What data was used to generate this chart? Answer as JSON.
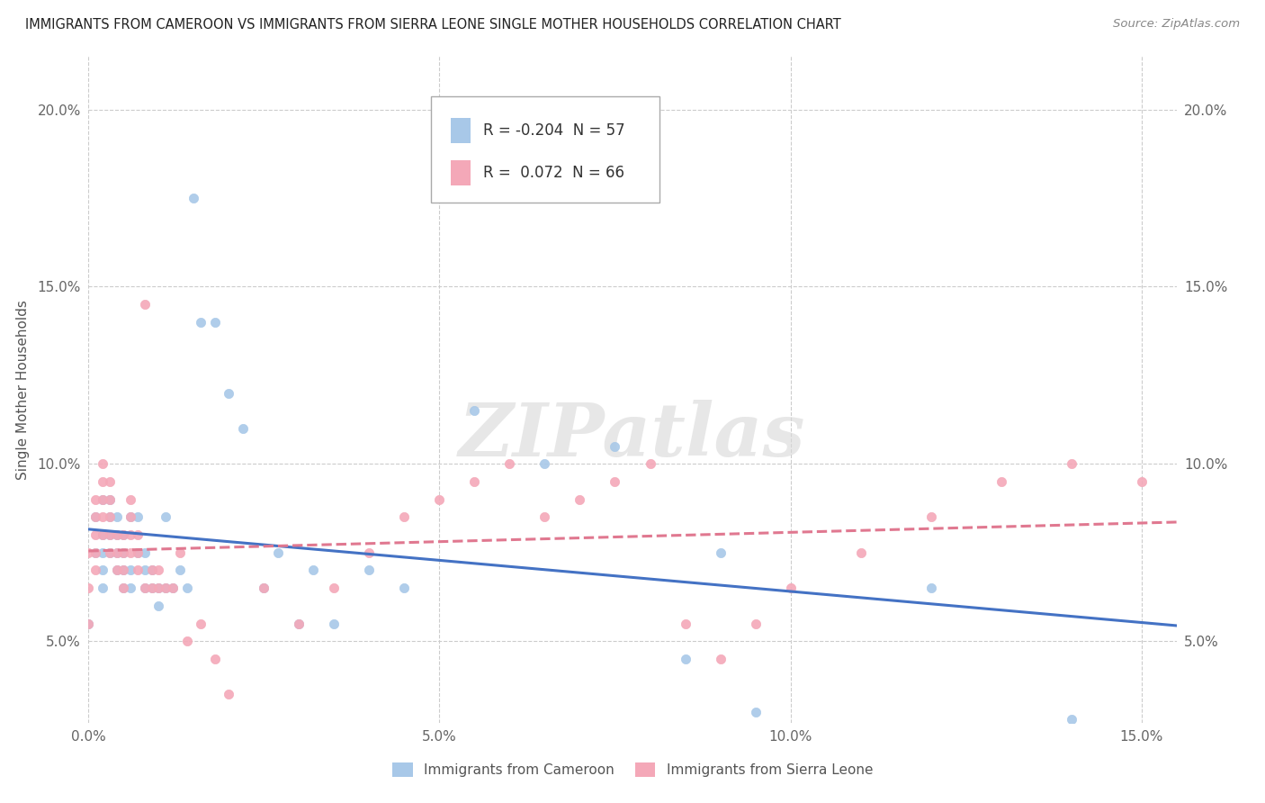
{
  "title": "IMMIGRANTS FROM CAMEROON VS IMMIGRANTS FROM SIERRA LEONE SINGLE MOTHER HOUSEHOLDS CORRELATION CHART",
  "source": "Source: ZipAtlas.com",
  "xlabel_cameroon": "Immigrants from Cameroon",
  "xlabel_sierraleone": "Immigrants from Sierra Leone",
  "ylabel": "Single Mother Households",
  "watermark": "ZIPatlas",
  "legend_R_cameroon": "-0.204",
  "legend_N_cameroon": "57",
  "legend_R_sierraleone": "0.072",
  "legend_N_sierraleone": "66",
  "color_cameroon": "#a8c8e8",
  "color_sierraleone": "#f4a8b8",
  "color_line_cameroon": "#4472c4",
  "color_line_sierraleone": "#e07890",
  "xlim": [
    0.0,
    0.155
  ],
  "ylim": [
    0.027,
    0.215
  ],
  "xticks": [
    0.0,
    0.05,
    0.1,
    0.15
  ],
  "yticks": [
    0.05,
    0.1,
    0.15,
    0.2
  ],
  "cameroon_x": [
    0.0,
    0.001,
    0.001,
    0.002,
    0.002,
    0.002,
    0.002,
    0.002,
    0.003,
    0.003,
    0.003,
    0.003,
    0.004,
    0.004,
    0.004,
    0.004,
    0.005,
    0.005,
    0.005,
    0.005,
    0.006,
    0.006,
    0.006,
    0.007,
    0.007,
    0.008,
    0.008,
    0.008,
    0.009,
    0.009,
    0.01,
    0.01,
    0.011,
    0.011,
    0.012,
    0.013,
    0.014,
    0.015,
    0.016,
    0.018,
    0.02,
    0.022,
    0.025,
    0.027,
    0.03,
    0.032,
    0.035,
    0.04,
    0.045,
    0.055,
    0.065,
    0.075,
    0.085,
    0.09,
    0.095,
    0.12,
    0.14
  ],
  "cameroon_y": [
    0.055,
    0.085,
    0.075,
    0.065,
    0.07,
    0.075,
    0.08,
    0.09,
    0.075,
    0.08,
    0.085,
    0.09,
    0.07,
    0.075,
    0.08,
    0.085,
    0.065,
    0.07,
    0.075,
    0.08,
    0.065,
    0.07,
    0.085,
    0.075,
    0.085,
    0.065,
    0.07,
    0.075,
    0.065,
    0.07,
    0.06,
    0.065,
    0.065,
    0.085,
    0.065,
    0.07,
    0.065,
    0.175,
    0.14,
    0.14,
    0.12,
    0.11,
    0.065,
    0.075,
    0.055,
    0.07,
    0.055,
    0.07,
    0.065,
    0.115,
    0.1,
    0.105,
    0.045,
    0.075,
    0.03,
    0.065,
    0.028
  ],
  "sierraleone_x": [
    0.0,
    0.0,
    0.0,
    0.001,
    0.001,
    0.001,
    0.001,
    0.001,
    0.002,
    0.002,
    0.002,
    0.002,
    0.002,
    0.003,
    0.003,
    0.003,
    0.003,
    0.003,
    0.004,
    0.004,
    0.004,
    0.005,
    0.005,
    0.005,
    0.005,
    0.006,
    0.006,
    0.006,
    0.006,
    0.007,
    0.007,
    0.007,
    0.008,
    0.008,
    0.009,
    0.009,
    0.01,
    0.01,
    0.011,
    0.012,
    0.013,
    0.014,
    0.016,
    0.018,
    0.02,
    0.025,
    0.03,
    0.035,
    0.04,
    0.045,
    0.05,
    0.055,
    0.06,
    0.065,
    0.07,
    0.075,
    0.08,
    0.085,
    0.09,
    0.095,
    0.1,
    0.11,
    0.12,
    0.13,
    0.14,
    0.15
  ],
  "sierraleone_y": [
    0.055,
    0.065,
    0.075,
    0.07,
    0.075,
    0.08,
    0.085,
    0.09,
    0.08,
    0.085,
    0.09,
    0.095,
    0.1,
    0.075,
    0.08,
    0.085,
    0.09,
    0.095,
    0.07,
    0.075,
    0.08,
    0.065,
    0.07,
    0.075,
    0.08,
    0.075,
    0.08,
    0.085,
    0.09,
    0.07,
    0.075,
    0.08,
    0.065,
    0.145,
    0.065,
    0.07,
    0.065,
    0.07,
    0.065,
    0.065,
    0.075,
    0.05,
    0.055,
    0.045,
    0.035,
    0.065,
    0.055,
    0.065,
    0.075,
    0.085,
    0.09,
    0.095,
    0.1,
    0.085,
    0.09,
    0.095,
    0.1,
    0.055,
    0.045,
    0.055,
    0.065,
    0.075,
    0.085,
    0.095,
    0.1,
    0.095
  ]
}
